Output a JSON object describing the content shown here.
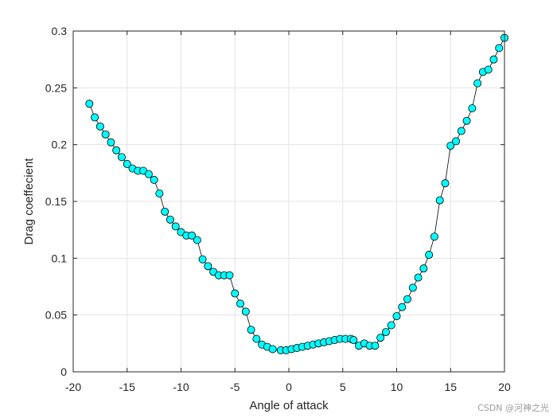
{
  "chart_data": {
    "type": "line",
    "title": "",
    "xlabel": "Angle of attack",
    "ylabel": "Drag coeffecient",
    "xlim": [
      -20,
      20
    ],
    "ylim": [
      0,
      0.3
    ],
    "xticks": [
      -20,
      -15,
      -10,
      -5,
      0,
      5,
      10,
      15,
      20
    ],
    "yticks": [
      0,
      0.05,
      0.1,
      0.15,
      0.2,
      0.25,
      0.3
    ],
    "grid": true,
    "series": [
      {
        "name": "Drag coefficient",
        "line_color": "#000000",
        "marker": "circle",
        "marker_fill": "#00ffff",
        "marker_edge": "#000000",
        "x": [
          -18.5,
          -18.0,
          -17.5,
          -17.0,
          -16.5,
          -16.0,
          -15.5,
          -15.0,
          -14.5,
          -14.0,
          -13.5,
          -13.0,
          -12.5,
          -12.0,
          -11.5,
          -11.0,
          -10.5,
          -10.0,
          -9.5,
          -9.0,
          -8.5,
          -8.0,
          -7.5,
          -7.0,
          -6.5,
          -6.0,
          -5.5,
          -5.0,
          -4.5,
          -4.0,
          -3.5,
          -3.0,
          -2.5,
          -2.0,
          -1.5,
          -0.75,
          -0.25,
          0.25,
          0.75,
          1.25,
          1.75,
          2.25,
          2.75,
          3.25,
          3.75,
          4.25,
          4.75,
          5.25,
          5.75,
          6.0,
          6.5,
          7.0,
          7.5,
          8.0,
          8.5,
          9.0,
          9.5,
          10.0,
          10.5,
          11.0,
          11.5,
          12.0,
          12.5,
          13.0,
          13.5,
          14.0,
          14.5,
          15.0,
          15.5,
          16.0,
          16.5,
          17.0,
          17.5,
          18.0,
          18.5,
          19.0,
          19.5,
          20.0
        ],
        "y": [
          0.236,
          0.224,
          0.216,
          0.209,
          0.202,
          0.195,
          0.189,
          0.183,
          0.179,
          0.177,
          0.177,
          0.174,
          0.169,
          0.157,
          0.141,
          0.134,
          0.128,
          0.123,
          0.12,
          0.12,
          0.116,
          0.099,
          0.093,
          0.088,
          0.085,
          0.085,
          0.085,
          0.069,
          0.06,
          0.053,
          0.037,
          0.029,
          0.024,
          0.022,
          0.02,
          0.019,
          0.019,
          0.02,
          0.021,
          0.022,
          0.023,
          0.024,
          0.025,
          0.026,
          0.027,
          0.028,
          0.029,
          0.029,
          0.029,
          0.028,
          0.023,
          0.025,
          0.023,
          0.023,
          0.03,
          0.035,
          0.041,
          0.049,
          0.057,
          0.064,
          0.074,
          0.083,
          0.091,
          0.103,
          0.119,
          0.151,
          0.166,
          0.199,
          0.203,
          0.212,
          0.221,
          0.232,
          0.254,
          0.264,
          0.266,
          0.275,
          0.285,
          0.294
        ]
      }
    ]
  },
  "watermark": "CSDN @河神之光",
  "style": {
    "background": "#ffffff",
    "axes_color": "#262626",
    "grid_color": "#e3e3e3"
  }
}
